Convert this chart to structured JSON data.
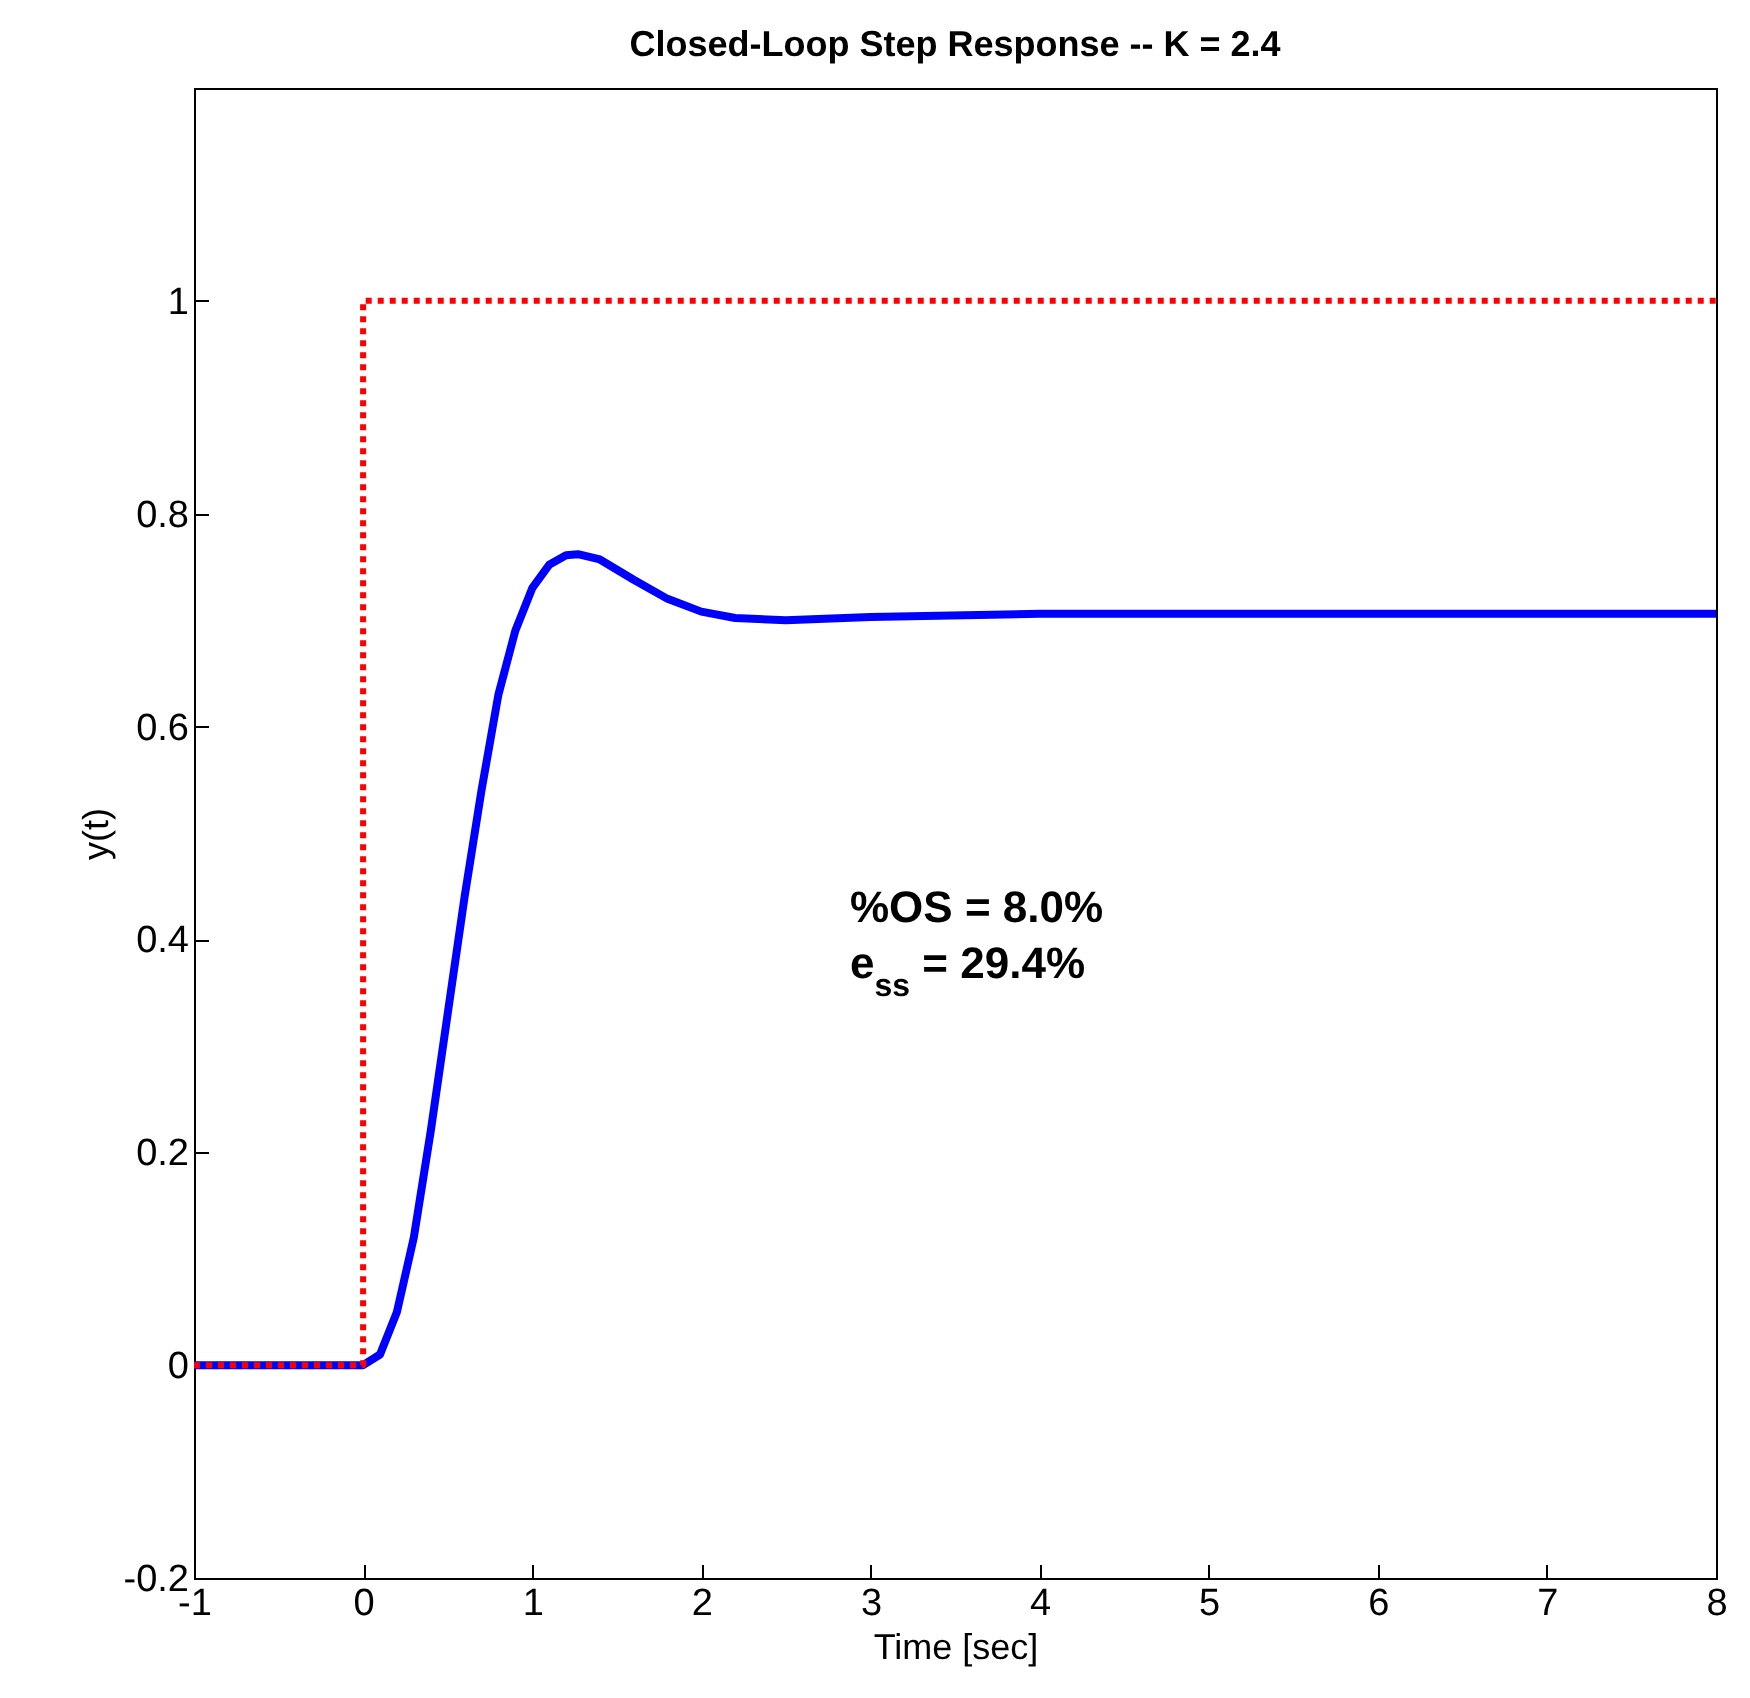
{
  "chart_data": {
    "type": "line",
    "title": "Closed-Loop Step Response -- K = 2.4",
    "xlabel": "Time    [sec]",
    "ylabel": "y(t)",
    "annotations": [
      "%OS = 8.0%",
      "e$_{ss}$ = 29.4%"
    ],
    "xlim": [
      -1,
      8
    ],
    "xticks": [
      -1,
      0,
      1,
      2,
      3,
      4,
      5,
      6,
      7,
      8
    ],
    "ylim": [
      -0.2,
      1.2
    ],
    "yticks": [
      -0.2,
      0,
      0.2,
      0.4,
      0.6,
      0.8,
      1
    ],
    "grid": false,
    "series": [
      {
        "color": "#0000ff",
        "line_style": "solid",
        "x": [
          -1,
          0,
          0.1,
          0.2,
          0.3,
          0.4,
          0.5,
          0.6,
          0.7,
          0.8,
          0.9,
          1.0,
          1.1,
          1.2,
          1.27,
          1.4,
          1.6,
          1.8,
          2.0,
          2.2,
          2.5,
          3,
          4,
          8
        ],
        "values": [
          0,
          0,
          0.01,
          0.05,
          0.12,
          0.22,
          0.33,
          0.44,
          0.54,
          0.63,
          0.69,
          0.73,
          0.752,
          0.761,
          0.762,
          0.757,
          0.738,
          0.72,
          0.708,
          0.702,
          0.7,
          0.703,
          0.706,
          0.706
        ]
      },
      {
        "color": "#ff0000",
        "line_style": "dotted",
        "x": [
          -1,
          0,
          0,
          8
        ],
        "values": [
          0,
          0,
          1,
          1
        ]
      }
    ]
  }
}
